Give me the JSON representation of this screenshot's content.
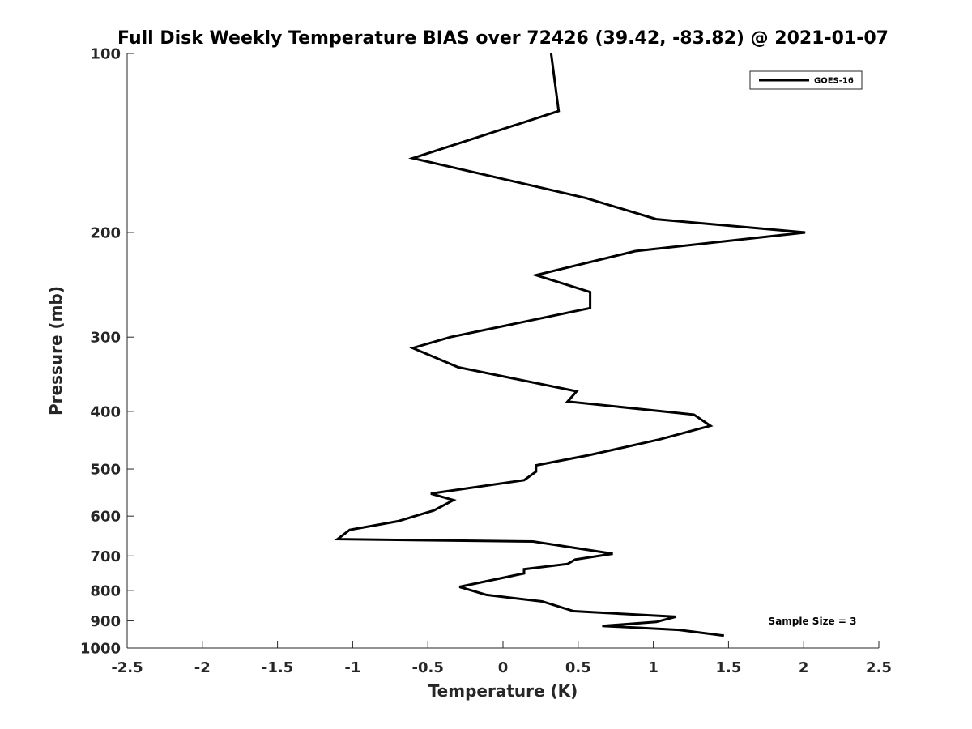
{
  "chart_data": {
    "type": "line",
    "title": "Full Disk Weekly Temperature BIAS over 72426 (39.42, -83.82) @ 2021-01-07",
    "xlabel": "Temperature (K)",
    "ylabel": "Pressure (mb)",
    "xlim": [
      -2.5,
      2.5
    ],
    "ylim": [
      1000,
      100
    ],
    "y_scale": "log",
    "y_reversed": true,
    "grid": false,
    "xticks": [
      -2.5,
      -2,
      -1.5,
      -1,
      -0.5,
      0,
      0.5,
      1,
      1.5,
      2,
      2.5
    ],
    "xtick_labels": [
      "-2.5",
      "-2",
      "-1.5",
      "-1",
      "-0.5",
      "0",
      "0.5",
      "1",
      "1.5",
      "2",
      "2.5"
    ],
    "yticks": [
      100,
      200,
      300,
      400,
      500,
      600,
      700,
      800,
      900,
      1000
    ],
    "ytick_labels": [
      "100",
      "200",
      "300",
      "400",
      "500",
      "600",
      "700",
      "800",
      "900",
      "1000"
    ],
    "legend": {
      "position": "top-right",
      "entries": [
        "GOES-16"
      ]
    },
    "annotation": "Sample Size = 3",
    "series": [
      {
        "name": "GOES-16",
        "color": "#000000",
        "points": [
          [
            0.32,
            100
          ],
          [
            0.37,
            125
          ],
          [
            -0.6,
            150
          ],
          [
            0.55,
            175
          ],
          [
            1.02,
            190
          ],
          [
            2.01,
            200
          ],
          [
            0.88,
            215
          ],
          [
            0.22,
            236
          ],
          [
            0.58,
            252
          ],
          [
            0.58,
            268
          ],
          [
            -0.35,
            300
          ],
          [
            -0.6,
            313
          ],
          [
            -0.3,
            337
          ],
          [
            0.49,
            370
          ],
          [
            0.43,
            385
          ],
          [
            1.27,
            405
          ],
          [
            1.38,
            423
          ],
          [
            1.04,
            446
          ],
          [
            0.57,
            474
          ],
          [
            0.22,
            493
          ],
          [
            0.22,
            505
          ],
          [
            0.14,
            522
          ],
          [
            -0.48,
            550
          ],
          [
            -0.33,
            564
          ],
          [
            -0.46,
            587
          ],
          [
            -0.7,
            612
          ],
          [
            -1.02,
            633
          ],
          [
            -1.1,
            656
          ],
          [
            0.2,
            662
          ],
          [
            0.73,
            694
          ],
          [
            0.48,
            710
          ],
          [
            0.43,
            722
          ],
          [
            0.14,
            737
          ],
          [
            0.14,
            749
          ],
          [
            -0.29,
            789
          ],
          [
            -0.11,
            814
          ],
          [
            0.26,
            835
          ],
          [
            0.47,
            867
          ],
          [
            1.15,
            886
          ],
          [
            1.02,
            904
          ],
          [
            0.66,
            918
          ],
          [
            1.17,
            932
          ],
          [
            1.47,
            953
          ]
        ]
      }
    ]
  }
}
